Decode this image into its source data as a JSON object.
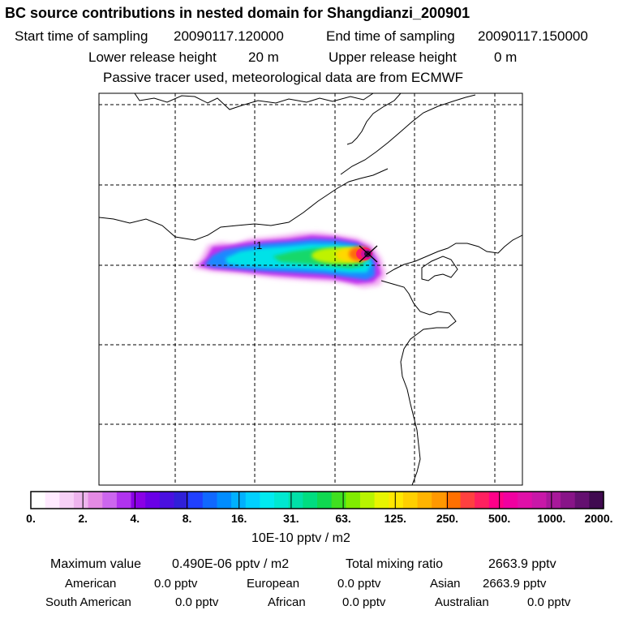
{
  "chart_data": {
    "type": "heatmap",
    "title": "BC  source contributions in nested domain for Shangdianzi_200901",
    "sampling": {
      "start_label": "Start time of sampling",
      "start": "20090117.120000",
      "end_label": "End time of sampling",
      "end": "20090117.150000"
    },
    "release": {
      "lower_label": "Lower release height",
      "lower": "20 m",
      "upper_label": "Upper release height",
      "upper": "0 m"
    },
    "note": "Passive tracer used, meteorological data are from ECMWF",
    "contour_label": "1",
    "colorbar": {
      "ticks": [
        "0.",
        "2.",
        "4.",
        "8.",
        "16.",
        "31.",
        "63.",
        "125.",
        "250.",
        "500.",
        "1000.",
        "2000."
      ],
      "unit": "10E-10 pptv / m2",
      "colors": [
        "#ffffff",
        "#ffeaff",
        "#f7d0f7",
        "#eeb4ee",
        "#e48ae4",
        "#cc66ee",
        "#b033ee",
        "#8a00e6",
        "#6a00e6",
        "#4a10e0",
        "#3020d8",
        "#2040ff",
        "#1068ff",
        "#008cff",
        "#00b0ff",
        "#00d0ff",
        "#00eaf0",
        "#00e8d0",
        "#00e0a8",
        "#00dd80",
        "#10d850",
        "#40e020",
        "#80ec00",
        "#b8f400",
        "#e8f400",
        "#ffe800",
        "#ffd000",
        "#ffb400",
        "#ff9800",
        "#ff7000",
        "#ff4040",
        "#ff2060",
        "#ff0088",
        "#f000a0",
        "#e010a8",
        "#c818a8",
        "#a8189a",
        "#881488",
        "#641070",
        "#400a50"
      ]
    },
    "stats": {
      "max_label": "Maximum value",
      "max_value": "0.490E-06 pptv / m2",
      "total_label": "Total mixing ratio",
      "total_value": "2663.9 pptv"
    },
    "regions": [
      {
        "name": "American",
        "value": "0.0 pptv"
      },
      {
        "name": "European",
        "value": "0.0 pptv"
      },
      {
        "name": "Asian",
        "value": "2663.9 pptv"
      },
      {
        "name": "South American",
        "value": "0.0 pptv"
      },
      {
        "name": "African",
        "value": "0.0 pptv"
      },
      {
        "name": "Australian",
        "value": "0.0 pptv"
      }
    ]
  }
}
